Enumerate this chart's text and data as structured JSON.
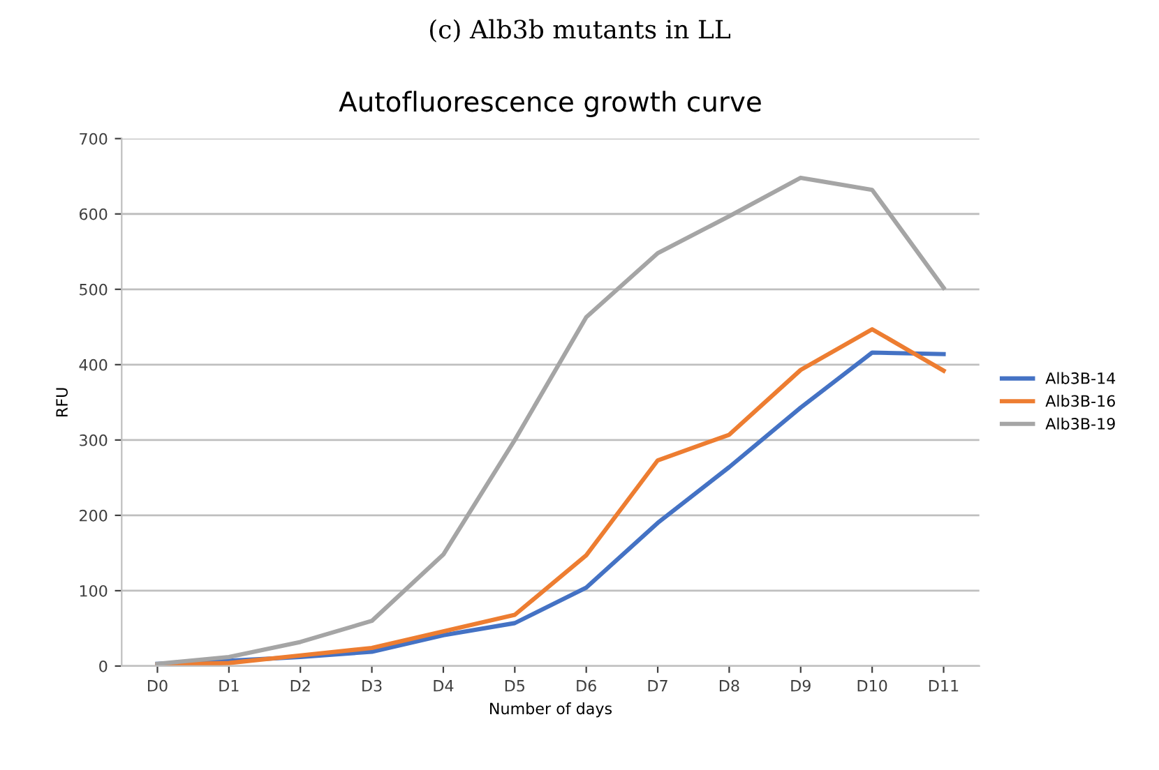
{
  "chart_data": {
    "type": "line",
    "title": "Autofluorescence growth curve",
    "annotations": [
      "(c) Alb3b mutants in LL"
    ],
    "xlabel": "Number of days",
    "ylabel": "RFU",
    "categories": [
      "D0",
      "D1",
      "D2",
      "D3",
      "D4",
      "D5",
      "D6",
      "D7",
      "D8",
      "D9",
      "D10",
      "D11"
    ],
    "series": [
      {
        "name": "Alb3B-14",
        "color": "#4472c4",
        "values": [
          3,
          7,
          12,
          19,
          41,
          57,
          104,
          190,
          264,
          343,
          416,
          414
        ]
      },
      {
        "name": "Alb3B-16",
        "color": "#ed7d31",
        "values": [
          2,
          4,
          14,
          24,
          46,
          68,
          147,
          273,
          307,
          393,
          447,
          392
        ]
      },
      {
        "name": "Alb3B-19",
        "color": "#a5a5a5",
        "values": [
          3,
          12,
          32,
          60,
          148,
          300,
          463,
          548,
          597,
          648,
          632,
          502
        ]
      }
    ],
    "ylim": [
      0,
      700
    ],
    "yticks": [
      0,
      100,
      200,
      300,
      400,
      500,
      600,
      700
    ],
    "grid": "y",
    "legend": "right",
    "marker": "none",
    "line_style": "solid"
  }
}
